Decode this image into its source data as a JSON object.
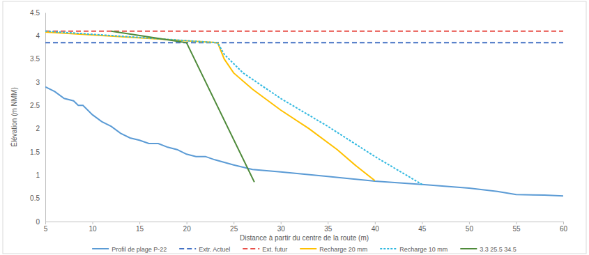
{
  "chart_data": {
    "type": "line",
    "xlabel": "Distance à partir du centre de la route (m)",
    "ylabel": "Élévation (m NMM)",
    "xlim": [
      5,
      60
    ],
    "xticks": [
      5,
      10,
      15,
      20,
      25,
      30,
      35,
      40,
      45,
      50,
      55,
      60
    ],
    "ylim": [
      0,
      4.5
    ],
    "yticks": [
      0,
      0.5,
      1,
      1.5,
      2,
      2.5,
      3,
      3.5,
      4,
      4.5
    ],
    "grid": false,
    "legend": "bottom",
    "series": [
      {
        "name": "Profil de plage P-22",
        "color": "#5b9bd5",
        "line_style": "solid",
        "x": [
          5,
          6,
          7,
          8,
          8.5,
          9,
          10,
          11,
          12,
          13,
          14,
          15,
          16,
          17,
          18,
          19,
          20,
          21,
          22,
          23,
          25,
          27,
          30,
          35,
          40,
          45,
          50,
          53,
          55,
          58,
          60
        ],
        "values": [
          2.9,
          2.8,
          2.65,
          2.6,
          2.5,
          2.5,
          2.3,
          2.15,
          2.05,
          1.9,
          1.8,
          1.75,
          1.68,
          1.68,
          1.6,
          1.55,
          1.45,
          1.4,
          1.4,
          1.33,
          1.22,
          1.12,
          1.07,
          0.97,
          0.87,
          0.8,
          0.72,
          0.65,
          0.58,
          0.57,
          0.55
        ]
      },
      {
        "name": "Extr. Actuel",
        "color": "#4472c4",
        "line_style": "dashed",
        "x": [
          5,
          60
        ],
        "values": [
          3.85,
          3.85
        ]
      },
      {
        "name": "Ext. futur",
        "color": "#e8504a",
        "line_style": "dashed",
        "x": [
          5,
          60
        ],
        "values": [
          4.1,
          4.1
        ]
      },
      {
        "name": "Recharge 20 mm",
        "color": "#ffc000",
        "line_style": "solid",
        "x": [
          5,
          23.3,
          24,
          25,
          27,
          30,
          33,
          36,
          38,
          40
        ],
        "values": [
          4.08,
          3.85,
          3.5,
          3.2,
          2.85,
          2.4,
          2.0,
          1.55,
          1.2,
          0.88
        ]
      },
      {
        "name": "Recharge 10 mm",
        "color": "#2fb8e0",
        "line_style": "dotted",
        "x": [
          5,
          23.3,
          24,
          26,
          30,
          35,
          40,
          45
        ],
        "values": [
          4.1,
          3.85,
          3.6,
          3.2,
          2.65,
          2.05,
          1.4,
          0.8
        ]
      },
      {
        "name": "3.3 25.5 34.5",
        "color": "#4e8a3a",
        "line_style": "solid",
        "x": [
          12,
          20,
          27.2
        ],
        "values": [
          4.1,
          3.85,
          0.85
        ]
      }
    ]
  }
}
